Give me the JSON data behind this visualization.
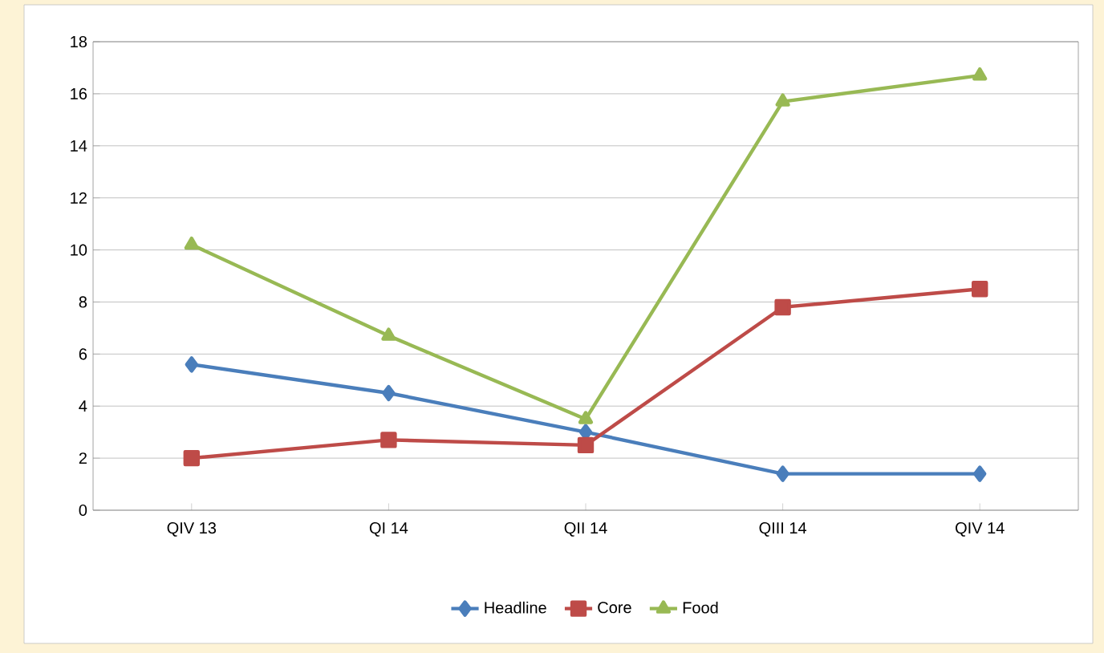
{
  "chart_data": {
    "type": "line",
    "categories": [
      "QIV 13",
      "QI 14",
      "QII 14",
      "QIII 14",
      "QIV 14"
    ],
    "series": [
      {
        "name": "Headline",
        "color": "#4a7ebb",
        "marker": "diamond",
        "values": [
          5.6,
          4.5,
          3.0,
          1.4,
          1.4
        ]
      },
      {
        "name": "Core",
        "color": "#be4b48",
        "marker": "square",
        "values": [
          2.0,
          2.7,
          2.5,
          7.8,
          8.5
        ]
      },
      {
        "name": "Food",
        "color": "#98b954",
        "marker": "triangle",
        "values": [
          10.2,
          6.7,
          3.5,
          15.7,
          16.7
        ]
      }
    ],
    "ylim": [
      0,
      18
    ],
    "yticks": [
      0,
      2,
      4,
      6,
      8,
      10,
      12,
      14,
      16,
      18
    ],
    "grid": "y",
    "legend": "bottom"
  }
}
